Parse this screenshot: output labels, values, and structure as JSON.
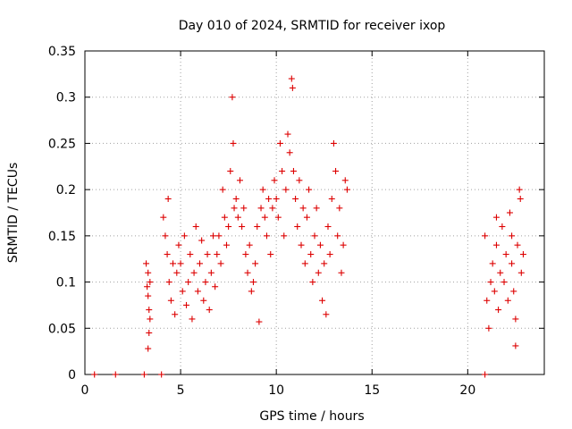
{
  "chart_data": {
    "type": "scatter",
    "title": "Day 010 of 2024, SRMTID for receiver ixop",
    "xlabel": "GPS time / hours",
    "ylabel": "SRMTID / TECUs",
    "xlim": [
      0,
      24
    ],
    "ylim": [
      0,
      0.35
    ],
    "x_ticks": [
      0,
      5,
      10,
      15,
      20
    ],
    "x_tick_labels": [
      "0",
      "5",
      "10",
      "15",
      "20"
    ],
    "y_ticks": [
      0,
      0.05,
      0.1,
      0.15,
      0.2,
      0.25,
      0.3,
      0.35
    ],
    "y_tick_labels": [
      "0",
      "0.05",
      "0.1",
      "0.15",
      "0.2",
      "0.25",
      "0.3",
      "0.35"
    ],
    "grid": true,
    "marker": "+",
    "marker_color": "#dd0000",
    "series": [
      {
        "name": "SRMTID",
        "points": [
          [
            0.5,
            0.0
          ],
          [
            1.6,
            0.0
          ],
          [
            3.1,
            0.0
          ],
          [
            4.0,
            0.0
          ],
          [
            20.9,
            0.0
          ],
          [
            3.2,
            0.12
          ],
          [
            3.25,
            0.095
          ],
          [
            3.3,
            0.085
          ],
          [
            3.35,
            0.07
          ],
          [
            3.3,
            0.11
          ],
          [
            3.4,
            0.06
          ],
          [
            3.35,
            0.045
          ],
          [
            3.3,
            0.028
          ],
          [
            3.4,
            0.1
          ],
          [
            4.1,
            0.17
          ],
          [
            4.2,
            0.15
          ],
          [
            4.3,
            0.13
          ],
          [
            4.35,
            0.19
          ],
          [
            4.4,
            0.1
          ],
          [
            4.5,
            0.08
          ],
          [
            4.6,
            0.12
          ],
          [
            4.7,
            0.065
          ],
          [
            4.8,
            0.11
          ],
          [
            4.9,
            0.14
          ],
          [
            5.0,
            0.12
          ],
          [
            5.1,
            0.09
          ],
          [
            5.2,
            0.15
          ],
          [
            5.3,
            0.075
          ],
          [
            5.4,
            0.1
          ],
          [
            5.5,
            0.13
          ],
          [
            5.6,
            0.06
          ],
          [
            5.7,
            0.11
          ],
          [
            5.8,
            0.16
          ],
          [
            5.9,
            0.09
          ],
          [
            6.0,
            0.12
          ],
          [
            6.1,
            0.145
          ],
          [
            6.2,
            0.08
          ],
          [
            6.3,
            0.1
          ],
          [
            6.4,
            0.13
          ],
          [
            6.5,
            0.07
          ],
          [
            6.6,
            0.11
          ],
          [
            6.7,
            0.15
          ],
          [
            6.8,
            0.095
          ],
          [
            6.9,
            0.13
          ],
          [
            7.0,
            0.15
          ],
          [
            7.1,
            0.12
          ],
          [
            7.2,
            0.2
          ],
          [
            7.3,
            0.17
          ],
          [
            7.4,
            0.14
          ],
          [
            7.5,
            0.16
          ],
          [
            7.6,
            0.22
          ],
          [
            7.7,
            0.3
          ],
          [
            7.75,
            0.25
          ],
          [
            7.8,
            0.18
          ],
          [
            7.9,
            0.19
          ],
          [
            8.0,
            0.17
          ],
          [
            8.1,
            0.21
          ],
          [
            8.2,
            0.16
          ],
          [
            8.3,
            0.18
          ],
          [
            8.4,
            0.13
          ],
          [
            8.5,
            0.11
          ],
          [
            8.6,
            0.14
          ],
          [
            8.7,
            0.09
          ],
          [
            8.8,
            0.1
          ],
          [
            8.9,
            0.12
          ],
          [
            9.0,
            0.16
          ],
          [
            9.1,
            0.057
          ],
          [
            9.2,
            0.18
          ],
          [
            9.3,
            0.2
          ],
          [
            9.4,
            0.17
          ],
          [
            9.5,
            0.15
          ],
          [
            9.6,
            0.19
          ],
          [
            9.7,
            0.13
          ],
          [
            9.8,
            0.18
          ],
          [
            9.9,
            0.21
          ],
          [
            10.0,
            0.19
          ],
          [
            10.1,
            0.17
          ],
          [
            10.2,
            0.25
          ],
          [
            10.3,
            0.22
          ],
          [
            10.4,
            0.15
          ],
          [
            10.5,
            0.2
          ],
          [
            10.6,
            0.26
          ],
          [
            10.7,
            0.24
          ],
          [
            10.8,
            0.32
          ],
          [
            10.85,
            0.31
          ],
          [
            10.9,
            0.22
          ],
          [
            11.0,
            0.19
          ],
          [
            11.1,
            0.16
          ],
          [
            11.2,
            0.21
          ],
          [
            11.3,
            0.14
          ],
          [
            11.4,
            0.18
          ],
          [
            11.5,
            0.12
          ],
          [
            11.6,
            0.17
          ],
          [
            11.7,
            0.2
          ],
          [
            11.8,
            0.13
          ],
          [
            11.9,
            0.1
          ],
          [
            12.0,
            0.15
          ],
          [
            12.1,
            0.18
          ],
          [
            12.2,
            0.11
          ],
          [
            12.3,
            0.14
          ],
          [
            12.4,
            0.08
          ],
          [
            12.5,
            0.12
          ],
          [
            12.6,
            0.065
          ],
          [
            12.7,
            0.16
          ],
          [
            12.8,
            0.13
          ],
          [
            12.9,
            0.19
          ],
          [
            13.0,
            0.25
          ],
          [
            13.1,
            0.22
          ],
          [
            13.2,
            0.15
          ],
          [
            13.3,
            0.18
          ],
          [
            13.4,
            0.11
          ],
          [
            13.5,
            0.14
          ],
          [
            13.6,
            0.21
          ],
          [
            13.7,
            0.2
          ],
          [
            20.9,
            0.15
          ],
          [
            21.0,
            0.08
          ],
          [
            21.1,
            0.05
          ],
          [
            21.2,
            0.1
          ],
          [
            21.3,
            0.12
          ],
          [
            21.4,
            0.09
          ],
          [
            21.5,
            0.14
          ],
          [
            21.6,
            0.07
          ],
          [
            21.7,
            0.11
          ],
          [
            21.8,
            0.16
          ],
          [
            21.9,
            0.1
          ],
          [
            22.0,
            0.13
          ],
          [
            22.1,
            0.08
          ],
          [
            22.2,
            0.175
          ],
          [
            22.3,
            0.12
          ],
          [
            22.4,
            0.09
          ],
          [
            22.5,
            0.06
          ],
          [
            22.6,
            0.14
          ],
          [
            22.7,
            0.2
          ],
          [
            22.75,
            0.19
          ],
          [
            22.8,
            0.11
          ],
          [
            22.9,
            0.13
          ],
          [
            22.5,
            0.031
          ],
          [
            21.5,
            0.17
          ],
          [
            22.3,
            0.15
          ]
        ]
      }
    ]
  }
}
